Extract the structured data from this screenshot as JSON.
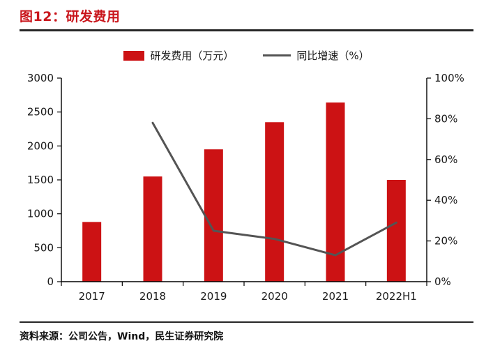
{
  "header": {
    "title": "图12：研发费用"
  },
  "legend": {
    "bar_label": "研发费用（万元）",
    "line_label": "同比增速（%）"
  },
  "footer": {
    "source": "资料来源：公司公告，Wind，民生证券研究院"
  },
  "colors": {
    "title": "#c9161c",
    "bar": "#cc1214",
    "line": "#545454",
    "rule": "#262626",
    "axis": "#000000",
    "text": "#1a1a1a"
  },
  "chart_data": {
    "type": "bar",
    "title": "图12：研发费用",
    "categories": [
      "2017",
      "2018",
      "2019",
      "2020",
      "2021",
      "2022H1"
    ],
    "series": [
      {
        "name": "研发费用（万元）",
        "type": "bar",
        "axis": "left",
        "values": [
          880,
          1550,
          1950,
          2350,
          2640,
          1500
        ]
      },
      {
        "name": "同比增速（%）",
        "type": "line",
        "axis": "right",
        "values": [
          null,
          78,
          25,
          21,
          13,
          29
        ]
      }
    ],
    "xlabel": "",
    "ylabel_left": "",
    "ylabel_right": "",
    "y_left": {
      "min": 0,
      "max": 3000,
      "step": 500
    },
    "y_right": {
      "min": 0,
      "max": 100,
      "step": 20,
      "suffix": "%"
    },
    "grid": false,
    "legend_position": "top-center"
  }
}
